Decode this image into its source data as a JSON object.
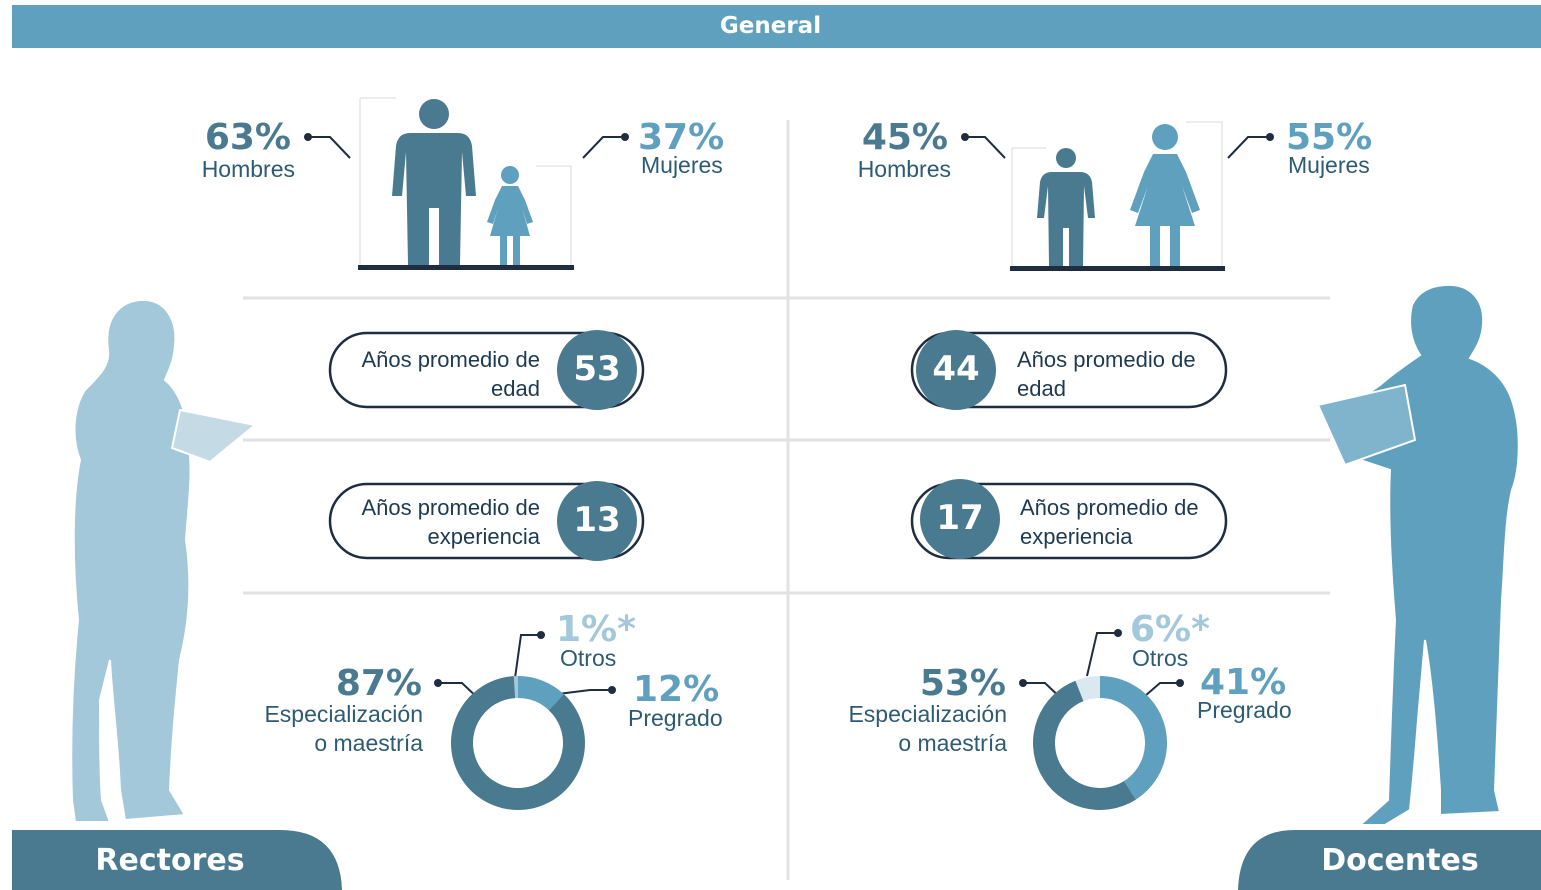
{
  "header": {
    "title": "General"
  },
  "rectores": {
    "title": "Rectores",
    "hombres": {
      "percent": "63%",
      "label": "Hombres"
    },
    "mujeres": {
      "percent": "37%",
      "label": "Mujeres"
    },
    "edad": {
      "label": "Años promedio de edad",
      "value": 53
    },
    "experiencia": {
      "label": "Años promedio de experiencia",
      "value": 13
    }
  },
  "docentes": {
    "title": "Docentes",
    "hombres": {
      "percent": "45%",
      "label": "Hombres"
    },
    "mujeres": {
      "percent": "55%",
      "label": "Mujeres"
    },
    "edad": {
      "label": "Años promedio de edad",
      "value": 44
    },
    "experiencia": {
      "label": "Años promedio de experiencia",
      "value": 17
    }
  },
  "chart_data": [
    {
      "type": "pie",
      "categories": [
        "Especialización o maestría",
        "Pregrado",
        "Otros"
      ],
      "values": [
        87,
        12,
        1
      ],
      "value_labels": [
        "87%",
        "12%",
        "1%*"
      ],
      "colors": [
        "#4a7a90",
        "#5fa0bf",
        "#a3c8d9"
      ]
    },
    {
      "type": "pie",
      "categories": [
        "Especialización o maestría",
        "Pregrado",
        "Otros"
      ],
      "values": [
        53,
        41,
        6
      ],
      "value_labels": [
        "53%",
        "41%",
        "6%*"
      ],
      "colors": [
        "#4a7a90",
        "#5fa0bf",
        "#dbe8ef"
      ]
    }
  ]
}
